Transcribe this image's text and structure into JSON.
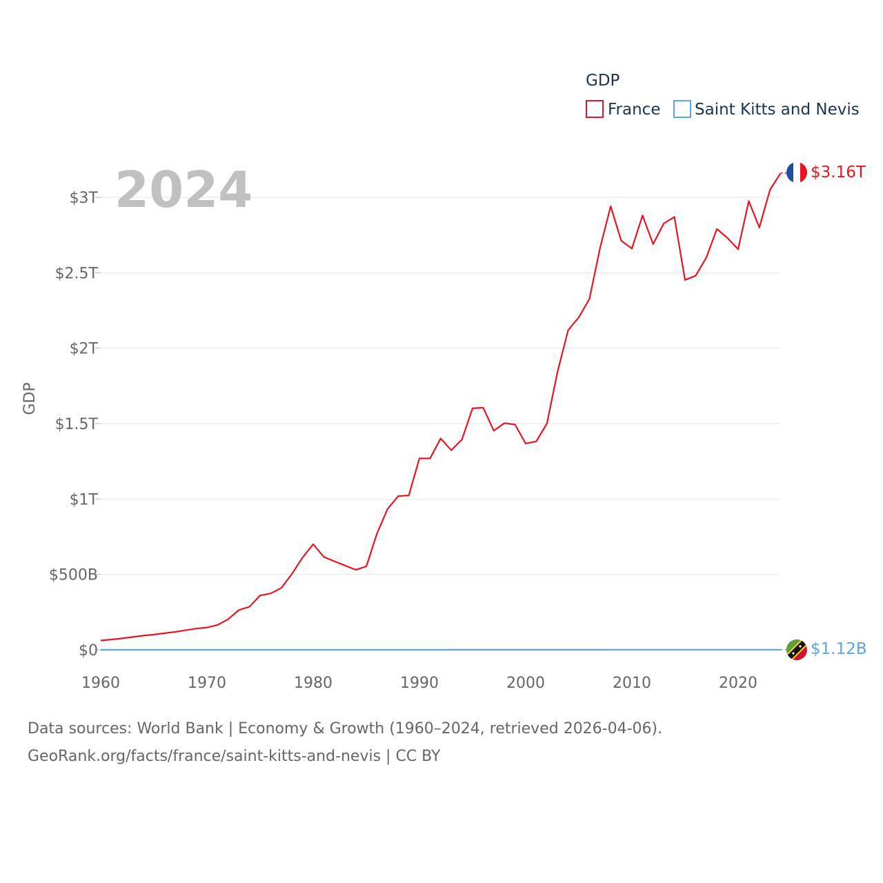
{
  "chart_data": {
    "type": "line",
    "title": "",
    "watermark_year": "2024",
    "xlabel": "",
    "ylabel": "GDP",
    "xlim": [
      1960,
      2024
    ],
    "ylim": [
      0,
      3000000000000
    ],
    "x_ticks": [
      1960,
      1970,
      1980,
      1990,
      2000,
      2010,
      2020
    ],
    "x_tick_labels": [
      "1960",
      "1970",
      "1980",
      "1990",
      "2000",
      "2010",
      "2020"
    ],
    "y_ticks": [
      0,
      500000000000,
      1000000000000,
      1500000000000,
      2000000000000,
      2500000000000,
      3000000000000
    ],
    "y_tick_labels": [
      "$0",
      "$500B",
      "$1T",
      "$1.5T",
      "$2T",
      "$2.5T",
      "$3T"
    ],
    "grid": true,
    "legend": {
      "title": "GDP",
      "position": "top-right",
      "entries": [
        "France",
        "Saint Kitts and Nevis"
      ]
    },
    "x": [
      1960,
      1961,
      1962,
      1963,
      1964,
      1965,
      1966,
      1967,
      1968,
      1969,
      1970,
      1971,
      1972,
      1973,
      1974,
      1975,
      1976,
      1977,
      1978,
      1979,
      1980,
      1981,
      1982,
      1983,
      1984,
      1985,
      1986,
      1987,
      1988,
      1989,
      1990,
      1991,
      1992,
      1993,
      1994,
      1995,
      1996,
      1997,
      1998,
      1999,
      2000,
      2001,
      2002,
      2003,
      2004,
      2005,
      2006,
      2007,
      2008,
      2009,
      2010,
      2011,
      2012,
      2013,
      2014,
      2015,
      2016,
      2017,
      2018,
      2019,
      2020,
      2021,
      2022,
      2023,
      2024
    ],
    "series": [
      {
        "name": "France",
        "color": "#e8141f",
        "end_label": "$3.16T",
        "values": [
          62000000000,
          68000000000,
          76000000000,
          85000000000,
          94000000000,
          101000000000,
          110000000000,
          119000000000,
          130000000000,
          141000000000,
          148000000000,
          165000000000,
          203000000000,
          264000000000,
          286000000000,
          360000000000,
          374000000000,
          410000000000,
          504000000000,
          612000000000,
          700000000000,
          616000000000,
          587000000000,
          559000000000,
          531000000000,
          553000000000,
          770000000000,
          934000000000,
          1019000000000,
          1024000000000,
          1269000000000,
          1269000000000,
          1401000000000,
          1323000000000,
          1394000000000,
          1601000000000,
          1605000000000,
          1453000000000,
          1503000000000,
          1493000000000,
          1368000000000,
          1382000000000,
          1500000000000,
          1844000000000,
          2119000000000,
          2204000000000,
          2326000000000,
          2664000000000,
          2940000000000,
          2712000000000,
          2660000000000,
          2880000000000,
          2690000000000,
          2826000000000,
          2870000000000,
          2452000000000,
          2480000000000,
          2600000000000,
          2790000000000,
          2730000000000,
          2656000000000,
          2975000000000,
          2800000000000,
          3050000000000,
          3160000000000
        ]
      },
      {
        "name": "Saint Kitts and Nevis",
        "color": "#5aa5e6",
        "end_label": "$1.12B",
        "values": [
          12000000,
          12000000,
          13000000,
          13000000,
          14000000,
          15000000,
          16000000,
          16000000,
          17000000,
          18000000,
          19000000,
          21000000,
          23000000,
          26000000,
          30000000,
          34000000,
          37000000,
          41000000,
          46000000,
          52000000,
          60000000,
          68000000,
          72000000,
          75000000,
          80000000,
          90000000,
          100000000,
          120000000,
          140000000,
          160000000,
          180000000,
          200000000,
          210000000,
          230000000,
          250000000,
          270000000,
          300000000,
          320000000,
          340000000,
          360000000,
          390000000,
          400000000,
          410000000,
          420000000,
          450000000,
          510000000,
          570000000,
          630000000,
          700000000,
          690000000,
          720000000,
          780000000,
          780000000,
          820000000,
          870000000,
          880000000,
          910000000,
          950000000,
          1000000000,
          1050000000,
          920000000,
          870000000,
          1000000000,
          1090000000,
          1120000000
        ]
      }
    ]
  },
  "footer": {
    "line1": "Data sources: World Bank | Economy & Growth (1960–2024, retrieved 2026-04-06).",
    "line2": "GeoRank.org/facts/france/saint-kitts-and-nevis | CC BY"
  }
}
